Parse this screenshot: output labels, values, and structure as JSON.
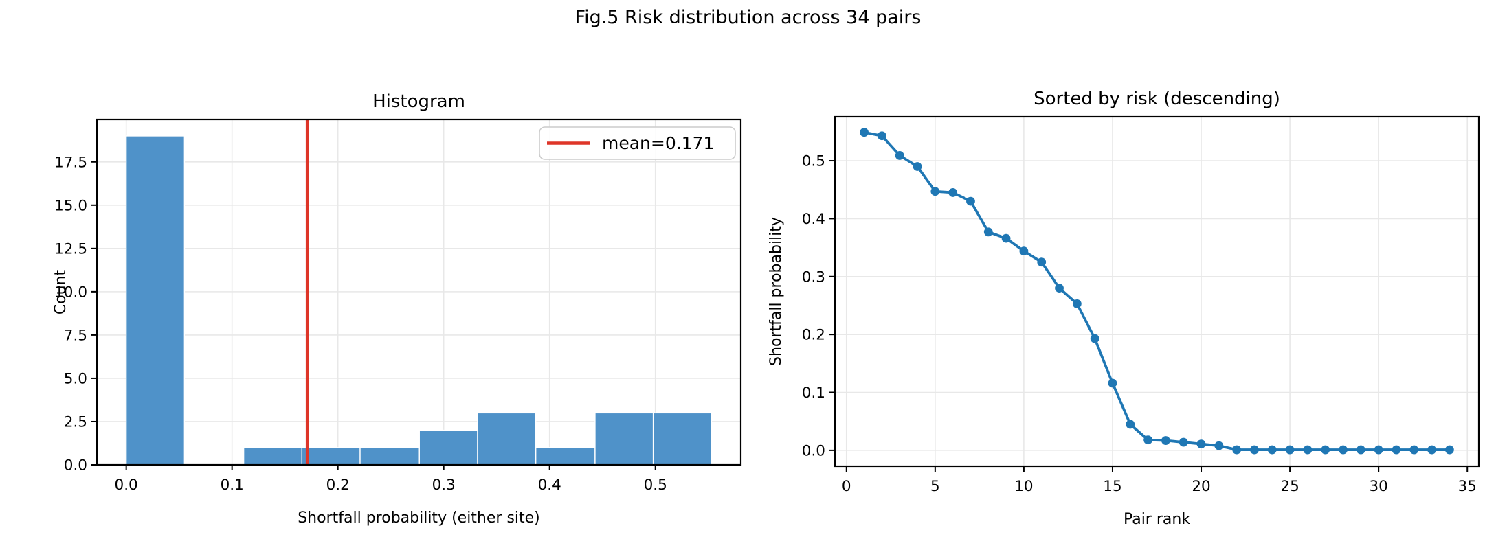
{
  "figure": {
    "suptitle": "Fig.5 Risk distribution across 34 pairs"
  },
  "colors": {
    "bar_fill": "#4f92c9",
    "line": "#1f77b4",
    "mean_line": "#de3528",
    "grid": "#e8e8e8",
    "spine": "#000000",
    "text": "#000000",
    "legend_border": "#cccccc",
    "background": "#ffffff"
  },
  "chart_data": [
    {
      "id": "histogram",
      "type": "bar",
      "title": "Histogram",
      "xlabel": "Shortfall probability (either site)",
      "ylabel": "Count",
      "grid": true,
      "legend_position": "upper right",
      "legend_label": "mean=0.171",
      "mean_value": 0.171,
      "bin_edges": [
        0.0,
        0.055,
        0.111,
        0.166,
        0.221,
        0.277,
        0.332,
        0.387,
        0.443,
        0.498,
        0.553
      ],
      "counts": [
        19,
        0,
        1,
        1,
        1,
        2,
        3,
        1,
        3,
        3
      ],
      "xticks": [
        0.0,
        0.1,
        0.2,
        0.3,
        0.4,
        0.5
      ],
      "xtick_labels": [
        "0.0",
        "0.1",
        "0.2",
        "0.3",
        "0.4",
        "0.5"
      ],
      "yticks": [
        0,
        2.5,
        5,
        7.5,
        10,
        12.5,
        15,
        17.5
      ],
      "ytick_labels": [
        "0.0",
        "2.5",
        "5.0",
        "7.5",
        "10.0",
        "12.5",
        "15.0",
        "17.5"
      ],
      "xlim": [
        -0.0277,
        0.5807
      ],
      "ylim": [
        0,
        19.95
      ]
    },
    {
      "id": "sorted-risk",
      "type": "line",
      "title": "Sorted by risk (descending)",
      "xlabel": "Pair rank",
      "ylabel": "Shortfall probability",
      "grid": true,
      "x": [
        1,
        2,
        3,
        4,
        5,
        6,
        7,
        8,
        9,
        10,
        11,
        12,
        13,
        14,
        15,
        16,
        17,
        18,
        19,
        20,
        21,
        22,
        23,
        24,
        25,
        26,
        27,
        28,
        29,
        30,
        31,
        32,
        33,
        34
      ],
      "y": [
        0.549,
        0.543,
        0.509,
        0.49,
        0.447,
        0.445,
        0.43,
        0.377,
        0.366,
        0.344,
        0.325,
        0.28,
        0.253,
        0.193,
        0.116,
        0.045,
        0.018,
        0.017,
        0.014,
        0.011,
        0.008,
        0.001,
        0.001,
        0.001,
        0.001,
        0.001,
        0.001,
        0.001,
        0.001,
        0.001,
        0.001,
        0.001,
        0.001,
        0.001
      ],
      "xticks": [
        0,
        5,
        10,
        15,
        20,
        25,
        30,
        35
      ],
      "xtick_labels": [
        "0",
        "5",
        "10",
        "15",
        "20",
        "25",
        "30",
        "35"
      ],
      "yticks": [
        0.0,
        0.1,
        0.2,
        0.3,
        0.4,
        0.5
      ],
      "ytick_labels": [
        "0.0",
        "0.1",
        "0.2",
        "0.3",
        "0.4",
        "0.5"
      ],
      "xlim": [
        -0.65,
        35.65
      ],
      "ylim": [
        -0.0274,
        0.5759
      ]
    }
  ]
}
